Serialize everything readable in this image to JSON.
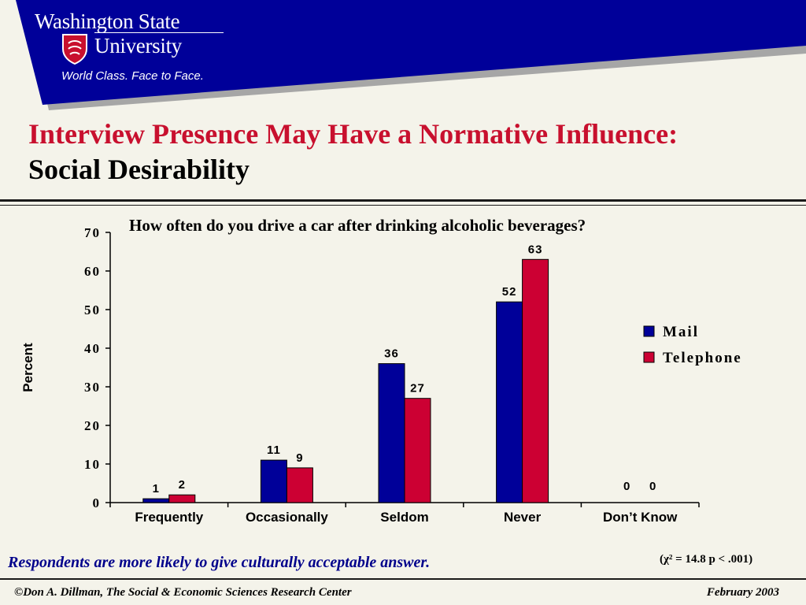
{
  "header": {
    "logo_line1": "Washington State",
    "logo_line2": "University",
    "tagline": "World Class. Face to Face.",
    "banner_color": "#000099"
  },
  "slide": {
    "title_red": "Interview Presence May Have a Normative Influence:",
    "title_black": "Social Desirability",
    "question": "How often do you drive a car after drinking alcoholic beverages?",
    "note": "Respondents are more likely to give culturally acceptable answer.",
    "stat": "(χ² = 14.8 p < .001)"
  },
  "footer": {
    "left": "©Don A. Dillman, The Social & Economic Sciences Research Center",
    "right": "February 2003"
  },
  "chart_data": {
    "type": "bar",
    "title": "How often do you drive a car after drinking alcoholic beverages?",
    "ylabel": "Percent",
    "xlabel": "",
    "ylim": [
      0,
      70
    ],
    "yticks": [
      0,
      10,
      20,
      30,
      40,
      50,
      60,
      70
    ],
    "categories": [
      "Frequently",
      "Occasionally",
      "Seldom",
      "Never",
      "Don’t Know"
    ],
    "series": [
      {
        "name": "Mail",
        "values": [
          1,
          11,
          36,
          52,
          0
        ],
        "color": "#000099"
      },
      {
        "name": "Telephone",
        "values": [
          2,
          9,
          27,
          63,
          0
        ],
        "color": "#cc0033"
      }
    ],
    "data_labels": true,
    "legend": "right",
    "grid": false
  }
}
